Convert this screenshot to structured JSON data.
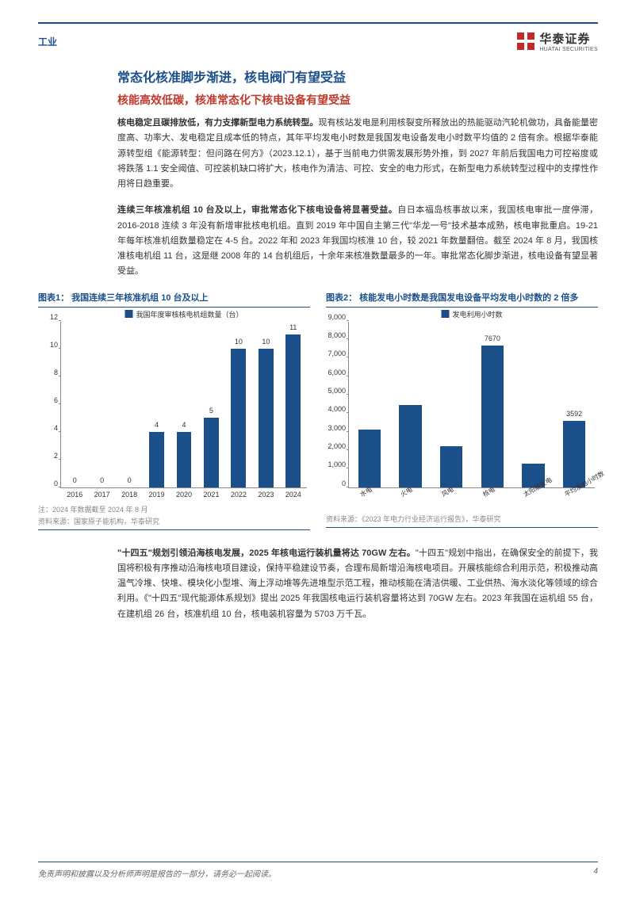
{
  "header": {
    "category": "工业",
    "brand_cn": "华泰证券",
    "brand_en": "HUATAI SECURITIES",
    "logo_color": "#c62828"
  },
  "titles": {
    "main": "常态化核准脚步渐进，核电阀门有望受益",
    "sub": "核能高效低碳，核准常态化下核电设备有望受益"
  },
  "paragraphs": {
    "p1_bold": "核电稳定且碳排放低，有力支撑新型电力系统转型。",
    "p1": "现有核站发电是利用核裂变所释放出的热能驱动汽轮机做功，具备能量密度高、功率大、发电稳定且成本低的特点，其年平均发电小时数是我国发电设备发电小时数平均值的 2 倍有余。根据华泰能源转型组《能源转型：但问路在何方》（2023.12.1），基于当前电力供需发展形势外推，到 2027 年前后我国电力可控裕度或将跌落 1.1 安全阈值、可控装机缺口将扩大，核电作为清洁、可控、安全的电力形式，在新型电力系统转型过程中的支撑性作用将日趋重要。",
    "p2_bold": "连续三年核准机组 10 台及以上，审批常态化下核电设备将显著受益。",
    "p2": "自日本福岛核事故以来，我国核电审批一度停滞，2016-2018 连续 3 年没有新增审批核电机组。直到 2019 年中国自主第三代\"华龙一号\"技术基本成熟，核电审批重启。19-21 年每年核准机组数量稳定在 4-5 台。2022 年和 2023 年我国均核准 10 台，较 2021 年数量翻倍。截至 2024 年 8 月，我国核准核电机组 11 台，这是继 2008 年的 14 台机组后，十余年来核准数量最多的一年。审批常态化脚步渐进，核电设备有望显著受益。",
    "p3_bold": "\"十四五\"规划引领沿海核电发展，2025 年核电运行装机量将达 70GW 左右。",
    "p3": "\"十四五\"规划中指出，在确保安全的前提下，我国将积极有序推动沿海核电项目建设，保持平稳建设节奏，合理布局新增沿海核电项目。开展核能综合利用示范，积极推动高温气冷堆、快堆、模块化小型堆、海上浮动堆等先进堆型示范工程，推动核能在清洁供暖、工业供热、海水淡化等领域的综合利用。《\"十四五\"现代能源体系规划》提出 2025 年我国核电运行装机容量将达到 70GW 左右。2023 年我国在运机组 55 台，在建机组 26 台，核准机组 10 台，核电装机容量为 5703 万千瓦。"
  },
  "chart1": {
    "title": "图表1： 我国连续三年核准机组 10 台及以上",
    "legend": "我国年度审核核电机组数量（台）",
    "type": "bar",
    "categories": [
      "2016",
      "2017",
      "2018",
      "2019",
      "2020",
      "2021",
      "2022",
      "2023",
      "2024"
    ],
    "values": [
      0,
      0,
      0,
      4,
      4,
      5,
      10,
      10,
      11
    ],
    "ylim": [
      0,
      12
    ],
    "ytick_step": 2,
    "bar_color": "#1a4f8a",
    "note": "注：2024 年数据截至 2024 年 8 月",
    "source": "资料来源：国家原子能机构，华泰研究"
  },
  "chart2": {
    "title": "图表2： 核能发电小时数是我国发电设备平均发电小时数的 2 倍多",
    "legend": "发电利用小时数",
    "type": "bar",
    "categories": [
      "水电",
      "火电",
      "风电",
      "核电",
      "太阳能发电",
      "平均发电小时数"
    ],
    "values": [
      3100,
      4450,
      2200,
      7670,
      1250,
      3592
    ],
    "value_labels": [
      "",
      "",
      "",
      "7670",
      "",
      "3592"
    ],
    "ylim": [
      0,
      9000
    ],
    "ytick_step": 1000,
    "bar_color": "#1a4f8a",
    "source": "资料来源：《2023 年电力行业经济运行报告》，华泰研究"
  },
  "footer": {
    "disclaimer": "免责声明和披露以及分析师声明是报告的一部分，请务必一起阅读。",
    "page_number": "4"
  },
  "colors": {
    "primary_blue": "#1a4f8a",
    "accent_red": "#c0392b",
    "text": "#333333",
    "muted": "#888888"
  }
}
